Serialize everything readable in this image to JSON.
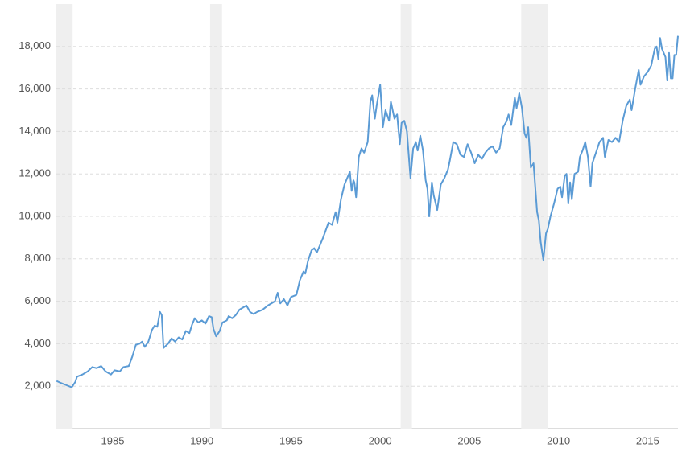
{
  "chart_data": {
    "type": "line",
    "color": "#5b9bd5",
    "grid": true,
    "band_color": "#efefef",
    "xlim": [
      1981.84,
      2016.7
    ],
    "xticks": [
      1985,
      1990,
      1995,
      2000,
      2005,
      2010,
      2015
    ],
    "ylim": [
      0,
      20000
    ],
    "yticks": [
      {
        "value": 2000,
        "label": "2,000"
      },
      {
        "value": 4000,
        "label": "4,000"
      },
      {
        "value": 6000,
        "label": "6,000"
      },
      {
        "value": 8000,
        "label": "8,000"
      },
      {
        "value": 10000,
        "label": "10,000"
      },
      {
        "value": 12000,
        "label": "12,000"
      },
      {
        "value": 14000,
        "label": "14,000"
      },
      {
        "value": 16000,
        "label": "16,000"
      },
      {
        "value": 18000,
        "label": "18,000"
      }
    ],
    "shaded_ranges": [
      [
        1981.84,
        1982.75
      ],
      [
        1990.46,
        1991.13
      ],
      [
        2001.15,
        2001.78
      ],
      [
        2007.91,
        2009.4
      ]
    ],
    "x": [
      1981.85,
      1982.1,
      1982.4,
      1982.7,
      1982.9,
      1983.0,
      1983.3,
      1983.6,
      1983.85,
      1984.1,
      1984.35,
      1984.6,
      1984.9,
      1985.1,
      1985.4,
      1985.6,
      1985.9,
      1986.1,
      1986.3,
      1986.5,
      1986.65,
      1986.8,
      1987.0,
      1987.2,
      1987.35,
      1987.5,
      1987.65,
      1987.75,
      1987.85,
      1988.1,
      1988.3,
      1988.5,
      1988.7,
      1988.9,
      1989.1,
      1989.3,
      1989.45,
      1989.6,
      1989.8,
      1990.0,
      1990.2,
      1990.4,
      1990.55,
      1990.65,
      1990.8,
      1991.0,
      1991.15,
      1991.4,
      1991.5,
      1991.7,
      1991.9,
      1992.1,
      1992.3,
      1992.5,
      1992.7,
      1992.9,
      1993.1,
      1993.4,
      1993.7,
      1993.9,
      1994.1,
      1994.25,
      1994.4,
      1994.6,
      1994.8,
      1995.0,
      1995.3,
      1995.5,
      1995.7,
      1995.8,
      1995.95,
      1996.15,
      1996.3,
      1996.45,
      1996.6,
      1996.8,
      1997.1,
      1997.3,
      1997.5,
      1997.6,
      1997.8,
      1998.0,
      1998.3,
      1998.4,
      1998.5,
      1998.55,
      1998.65,
      1998.8,
      1998.95,
      1999.1,
      1999.3,
      1999.45,
      1999.55,
      1999.7,
      1999.8,
      2000.0,
      2000.15,
      2000.3,
      2000.5,
      2000.6,
      2000.8,
      2000.95,
      2001.1,
      2001.2,
      2001.35,
      2001.5,
      2001.7,
      2001.85,
      2002.0,
      2002.1,
      2002.25,
      2002.4,
      2002.55,
      2002.65,
      2002.75,
      2002.9,
      2003.0,
      2003.2,
      2003.4,
      2003.6,
      2003.8,
      2003.9,
      2004.1,
      2004.3,
      2004.5,
      2004.7,
      2004.9,
      2005.1,
      2005.3,
      2005.5,
      2005.7,
      2005.9,
      2006.1,
      2006.3,
      2006.5,
      2006.7,
      2006.9,
      2007.1,
      2007.2,
      2007.35,
      2007.55,
      2007.65,
      2007.8,
      2007.95,
      2008.1,
      2008.2,
      2008.3,
      2008.45,
      2008.6,
      2008.8,
      2008.9,
      2009.0,
      2009.15,
      2009.3,
      2009.4,
      2009.55,
      2009.75,
      2009.95,
      2010.1,
      2010.2,
      2010.35,
      2010.45,
      2010.55,
      2010.65,
      2010.75,
      2010.9,
      2011.1,
      2011.2,
      2011.35,
      2011.5,
      2011.65,
      2011.8,
      2011.9,
      2012.1,
      2012.3,
      2012.5,
      2012.6,
      2012.8,
      2013.0,
      2013.2,
      2013.4,
      2013.6,
      2013.8,
      2014.0,
      2014.1,
      2014.3,
      2014.5,
      2014.6,
      2014.8,
      2015.0,
      2015.2,
      2015.4,
      2015.5,
      2015.6,
      2015.7,
      2015.8,
      2016.0,
      2016.1,
      2016.2,
      2016.3,
      2016.4,
      2016.5,
      2016.6,
      2016.7
    ],
    "values": [
      2250,
      2150,
      2050,
      1950,
      2200,
      2450,
      2550,
      2700,
      2900,
      2850,
      2950,
      2700,
      2550,
      2750,
      2700,
      2900,
      2950,
      3400,
      3950,
      4000,
      4100,
      3850,
      4100,
      4650,
      4850,
      4800,
      5500,
      5350,
      3800,
      4000,
      4250,
      4100,
      4300,
      4200,
      4600,
      4500,
      4900,
      5200,
      5000,
      5100,
      4950,
      5300,
      5250,
      4700,
      4350,
      4600,
      5000,
      5100,
      5300,
      5200,
      5350,
      5600,
      5700,
      5800,
      5500,
      5400,
      5500,
      5600,
      5800,
      5900,
      6000,
      6400,
      5900,
      6100,
      5800,
      6200,
      6300,
      7000,
      7400,
      7300,
      7900,
      8400,
      8500,
      8300,
      8600,
      9000,
      9700,
      9600,
      10200,
      9700,
      10800,
      11500,
      12100,
      11200,
      11700,
      11600,
      10900,
      12800,
      13200,
      13000,
      13500,
      15400,
      15700,
      14600,
      15200,
      16200,
      14200,
      15000,
      14500,
      15400,
      14600,
      14800,
      13400,
      14400,
      14500,
      14000,
      11800,
      13200,
      13500,
      13100,
      13800,
      13100,
      11700,
      11300,
      10000,
      11600,
      11000,
      10300,
      11500,
      11800,
      12200,
      12600,
      13500,
      13400,
      12900,
      12800,
      13400,
      13000,
      12500,
      12900,
      12700,
      13000,
      13200,
      13300,
      13000,
      13200,
      14200,
      14500,
      14800,
      14300,
      15600,
      15100,
      15800,
      15100,
      13900,
      13700,
      14200,
      12300,
      12500,
      10200,
      9800,
      8800,
      7950,
      9200,
      9400,
      10000,
      10600,
      11300,
      11400,
      10900,
      11900,
      12000,
      10600,
      11600,
      10800,
      12000,
      12100,
      12800,
      13100,
      13500,
      12800,
      11400,
      12500,
      13000,
      13500,
      13700,
      12800,
      13600,
      13500,
      13700,
      13500,
      14500,
      15200,
      15500,
      15000,
      16000,
      16900,
      16200,
      16600,
      16800,
      17100,
      17900,
      18000,
      17400,
      18400,
      17900,
      17500,
      16400,
      17700,
      16500,
      16500,
      17600,
      17600,
      18500
    ]
  }
}
